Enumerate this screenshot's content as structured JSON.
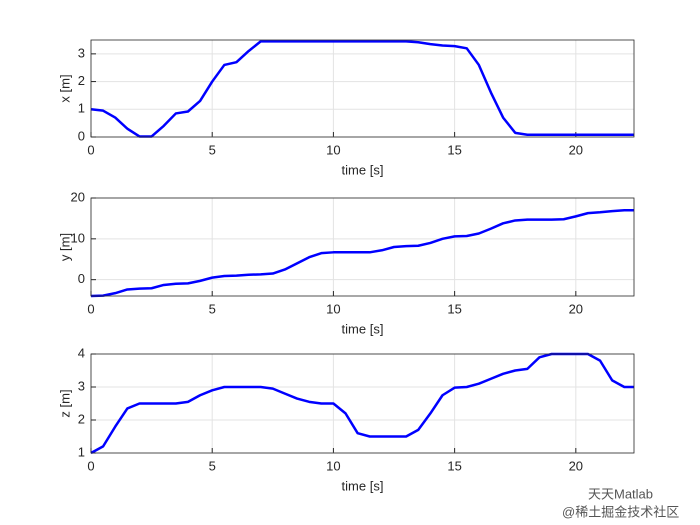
{
  "chart_data": [
    {
      "type": "line",
      "xlabel": "time [s]",
      "ylabel": "x [m]",
      "x": [
        0,
        0.5,
        1,
        1.5,
        2,
        2.5,
        3,
        3.5,
        4,
        4.5,
        5,
        5.5,
        6,
        6.5,
        7,
        7.5,
        8,
        8.5,
        9,
        9.5,
        10,
        10.5,
        11,
        11.5,
        12,
        12.5,
        13,
        13.5,
        14,
        14.5,
        15,
        15.5,
        16,
        16.5,
        17,
        17.5,
        18,
        18.5,
        19,
        19.5,
        20,
        20.5,
        21,
        21.5,
        22,
        22.4
      ],
      "series": [
        {
          "color": "#0000ff",
          "values": [
            1.0,
            0.95,
            0.7,
            0.3,
            0.02,
            0.02,
            0.4,
            0.85,
            0.92,
            1.3,
            2.0,
            2.6,
            2.7,
            3.1,
            3.45,
            3.45,
            3.45,
            3.45,
            3.45,
            3.45,
            3.45,
            3.45,
            3.45,
            3.45,
            3.45,
            3.45,
            3.45,
            3.42,
            3.35,
            3.3,
            3.28,
            3.2,
            2.6,
            1.6,
            0.7,
            0.15,
            0.08,
            0.08,
            0.08,
            0.08,
            0.08,
            0.08,
            0.08,
            0.08,
            0.08,
            0.08
          ]
        }
      ],
      "xlim": [
        0,
        22.4
      ],
      "ylim": [
        0,
        3.5
      ],
      "xticks": [
        0,
        5,
        10,
        15,
        20
      ],
      "yticks": [
        0,
        1,
        2,
        3
      ],
      "grid": true
    },
    {
      "type": "line",
      "xlabel": "time [s]",
      "ylabel": "y [m]",
      "x": [
        0,
        0.5,
        1,
        1.5,
        2,
        2.5,
        3,
        3.5,
        4,
        4.5,
        5,
        5.5,
        6,
        6.5,
        7,
        7.5,
        8,
        8.5,
        9,
        9.5,
        10,
        10.5,
        11,
        11.5,
        12,
        12.5,
        13,
        13.5,
        14,
        14.5,
        15,
        15.5,
        16,
        16.5,
        17,
        17.5,
        18,
        18.5,
        19,
        19.5,
        20,
        20.5,
        21,
        21.5,
        22,
        22.4
      ],
      "series": [
        {
          "color": "#0000ff",
          "values": [
            -4,
            -3.9,
            -3.3,
            -2.4,
            -2.2,
            -2.1,
            -1.3,
            -1.0,
            -0.9,
            -0.3,
            0.5,
            0.9,
            1.0,
            1.2,
            1.3,
            1.5,
            2.5,
            4.0,
            5.5,
            6.5,
            6.7,
            6.7,
            6.7,
            6.7,
            7.2,
            8.0,
            8.2,
            8.3,
            9.0,
            10.0,
            10.6,
            10.7,
            11.3,
            12.5,
            13.8,
            14.5,
            14.7,
            14.7,
            14.7,
            14.8,
            15.5,
            16.3,
            16.5,
            16.8,
            17,
            17
          ]
        }
      ],
      "xlim": [
        0,
        22.4
      ],
      "ylim": [
        -4,
        20
      ],
      "xticks": [
        0,
        5,
        10,
        15,
        20
      ],
      "yticks": [
        0,
        10,
        20
      ],
      "grid": true
    },
    {
      "type": "line",
      "xlabel": "time [s]",
      "ylabel": "z [m]",
      "x": [
        0,
        0.5,
        1,
        1.5,
        2,
        2.5,
        3,
        3.5,
        4,
        4.5,
        5,
        5.5,
        6,
        6.5,
        7,
        7.5,
        8,
        8.5,
        9,
        9.5,
        10,
        10.5,
        11,
        11.5,
        12,
        12.5,
        13,
        13.5,
        14,
        14.5,
        15,
        15.5,
        16,
        16.5,
        17,
        17.5,
        18,
        18.5,
        19,
        19.5,
        20,
        20.5,
        21,
        21.5,
        22,
        22.4
      ],
      "series": [
        {
          "color": "#0000ff",
          "values": [
            1,
            1.2,
            1.8,
            2.35,
            2.5,
            2.5,
            2.5,
            2.5,
            2.55,
            2.75,
            2.9,
            3.0,
            3.0,
            3.0,
            3.0,
            2.95,
            2.8,
            2.65,
            2.55,
            2.5,
            2.5,
            2.2,
            1.6,
            1.5,
            1.5,
            1.5,
            1.5,
            1.7,
            2.2,
            2.75,
            2.98,
            3.0,
            3.1,
            3.25,
            3.4,
            3.5,
            3.55,
            3.9,
            4.0,
            4.0,
            4.0,
            4.0,
            3.8,
            3.2,
            3.0,
            3.0
          ]
        }
      ],
      "xlim": [
        0,
        22.4
      ],
      "ylim": [
        1,
        4
      ],
      "xticks": [
        0,
        5,
        10,
        15,
        20
      ],
      "yticks": [
        1,
        2,
        3,
        4
      ],
      "grid": true
    }
  ],
  "watermark": {
    "line1": "天天Matlab",
    "line2": "@稀土掘金技术社区"
  }
}
